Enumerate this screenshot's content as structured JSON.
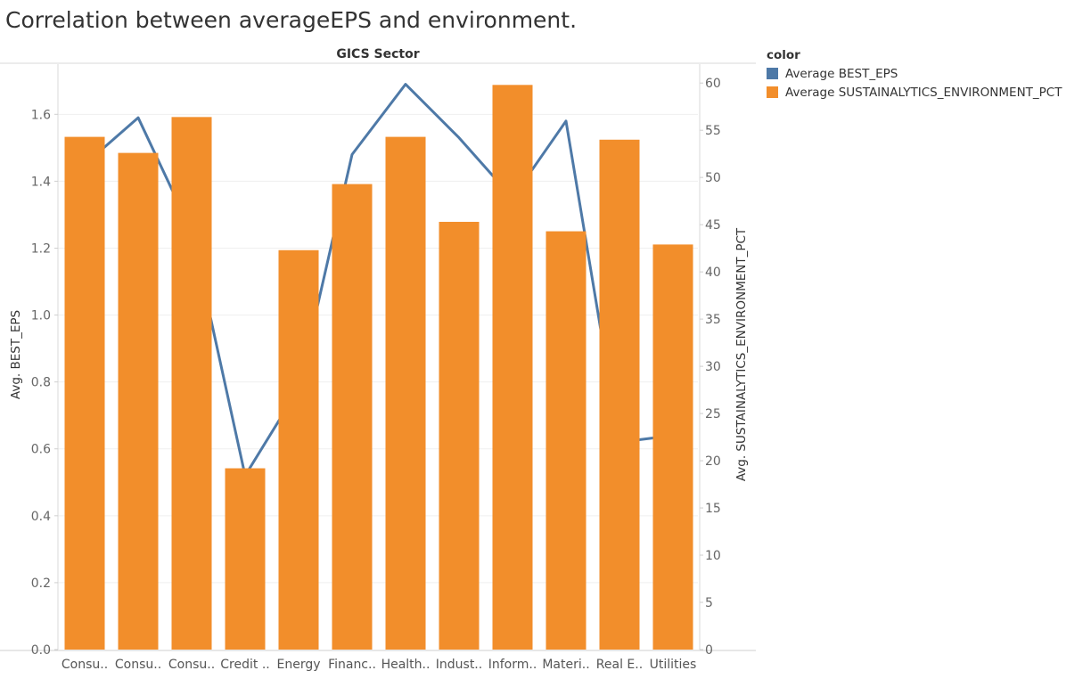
{
  "title": "Correlation between averageEPS and environment.",
  "legend": {
    "title": "color",
    "items": [
      {
        "label": "Average BEST_EPS",
        "color": "#4e79a7"
      },
      {
        "label": "Average SUSTAINALYTICS_ENVIRONMENT_PCT",
        "color": "#f28e2b"
      }
    ]
  },
  "chart_data": {
    "type": "bar",
    "header": "GICS Sector",
    "categories": [
      "Consu..",
      "Consu..",
      "Consu..",
      "Credit ..",
      "Energy",
      "Financ..",
      "Health..",
      "Indust..",
      "Inform..",
      "Materi..",
      "Real E..",
      "Utilities"
    ],
    "ylabel_left": "Avg. BEST_EPS",
    "ylabel_right": "Avg. SUSTAINALYTICS_ENVIRONMENT_PCT",
    "ylim_left": [
      0,
      1.75
    ],
    "ylim_right": [
      0,
      62
    ],
    "yticks_left": [
      "0.0",
      "0.2",
      "0.4",
      "0.6",
      "0.8",
      "1.0",
      "1.2",
      "1.4",
      "1.6"
    ],
    "yticks_right": [
      "0",
      "5",
      "10",
      "15",
      "20",
      "25",
      "30",
      "35",
      "40",
      "45",
      "50",
      "55",
      "60"
    ],
    "grid": true,
    "series": [
      {
        "name": "Average SUSTAINALYTICS_ENVIRONMENT_PCT",
        "kind": "bar",
        "axis": "right",
        "values": [
          54.3,
          52.6,
          56.4,
          19.2,
          42.3,
          49.3,
          54.3,
          45.3,
          59.8,
          44.3,
          54.0,
          42.9
        ]
      },
      {
        "name": "Average BEST_EPS",
        "kind": "line",
        "axis": "left",
        "values": [
          1.45,
          1.59,
          1.25,
          0.52,
          0.78,
          1.48,
          1.69,
          1.53,
          1.35,
          1.58,
          0.62,
          0.64
        ]
      }
    ]
  }
}
